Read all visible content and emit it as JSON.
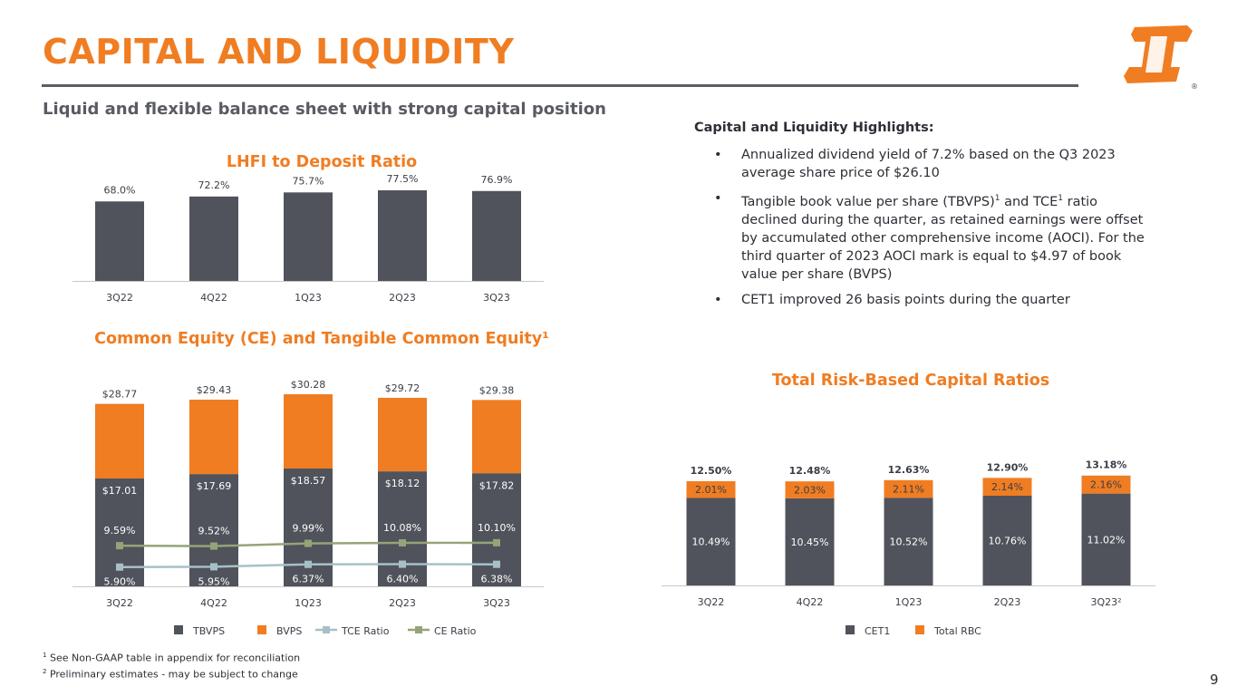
{
  "page": {
    "title": "CAPITAL AND LIQUIDITY",
    "subtitle": "Liquid and flexible balance sheet with strong capital position",
    "page_number": "9",
    "accent_color": "#f07d22",
    "dark_color": "#50535b"
  },
  "highlights": {
    "title": "Capital and Liquidity Highlights:",
    "b1": "Annualized dividend yield of 7.2% based on the Q3 2023 average share price of $26.10",
    "b2_part1": "Tangible book value per share (TBVPS)",
    "b2_sup1": "1",
    "b2_part2": " and TCE",
    "b2_sup2": "1",
    "b2_part3": " ratio declined during the quarter, as  retained earnings were offset by accumulated other comprehensive income (AOCI). For the third quarter of 2023 AOCI mark is equal to $4.97 of book value per share (BVPS)",
    "b3": "CET1 improved 26 basis points during the quarter"
  },
  "footnotes": {
    "n1_mark": "1",
    "n1": " See Non-GAAP table in appendix for reconciliation",
    "n2_mark": "2",
    "n2": " Preliminary estimates - may be subject to change"
  },
  "chart_data": [
    {
      "id": "ltd",
      "type": "bar",
      "title": "LHFI to Deposit Ratio",
      "categories": [
        "3Q22",
        "4Q22",
        "1Q23",
        "2Q23",
        "3Q23"
      ],
      "series": [
        {
          "values": [
            68.0,
            72.2,
            75.7,
            77.5,
            76.9
          ],
          "labels": [
            "68.0%",
            "72.2%",
            "75.7%",
            "77.5%",
            "76.9%"
          ],
          "color": "#50535b"
        }
      ]
    },
    {
      "id": "ce",
      "type": "bar",
      "title": "Common Equity (CE) and Tangible Common Equity¹",
      "categories": [
        "3Q22",
        "4Q22",
        "1Q23",
        "2Q23",
        "3Q23"
      ],
      "series": [
        {
          "name": "TBVPS",
          "values": [
            17.01,
            17.69,
            18.57,
            18.12,
            17.82
          ],
          "labels": [
            "$17.01",
            "$17.69",
            "$18.57",
            "$18.12",
            "$17.82"
          ],
          "color": "#50535b"
        },
        {
          "name": "BVPS",
          "values": [
            28.77,
            29.43,
            30.28,
            29.72,
            29.38
          ],
          "labels": [
            "$28.77",
            "$29.43",
            "$30.28",
            "$29.72",
            "$29.38"
          ],
          "color": "#f07d22"
        },
        {
          "name": "TCE Ratio",
          "type": "line",
          "values": [
            5.9,
            5.95,
            6.37,
            6.4,
            6.38
          ],
          "labels": [
            "5.90%",
            "5.95%",
            "6.37%",
            "6.40%",
            "6.38%"
          ],
          "color": "#a7c0c8"
        },
        {
          "name": "CE Ratio",
          "type": "line",
          "values": [
            9.59,
            9.52,
            9.99,
            10.08,
            10.1
          ],
          "labels": [
            "9.59%",
            "9.52%",
            "9.99%",
            "10.08%",
            "10.10%"
          ],
          "color": "#95a478"
        }
      ]
    },
    {
      "id": "rbc",
      "type": "bar",
      "stacked": true,
      "title": "Total Risk-Based Capital Ratios",
      "categories": [
        "3Q22",
        "4Q22",
        "1Q23",
        "2Q23",
        "3Q23²"
      ],
      "series": [
        {
          "name": "CET1",
          "values": [
            10.49,
            10.45,
            10.52,
            10.76,
            11.02
          ],
          "labels": [
            "10.49%",
            "10.45%",
            "10.52%",
            "10.76%",
            "11.02%"
          ],
          "color": "#50535b"
        },
        {
          "name": "Total RBC",
          "values": [
            2.01,
            2.03,
            2.11,
            2.14,
            2.16
          ],
          "labels": [
            "2.01%",
            "2.03%",
            "2.11%",
            "2.14%",
            "2.16%"
          ],
          "color": "#f07d22"
        }
      ],
      "totals": [
        "12.50%",
        "12.48%",
        "12.63%",
        "12.90%",
        "13.18%"
      ]
    }
  ]
}
